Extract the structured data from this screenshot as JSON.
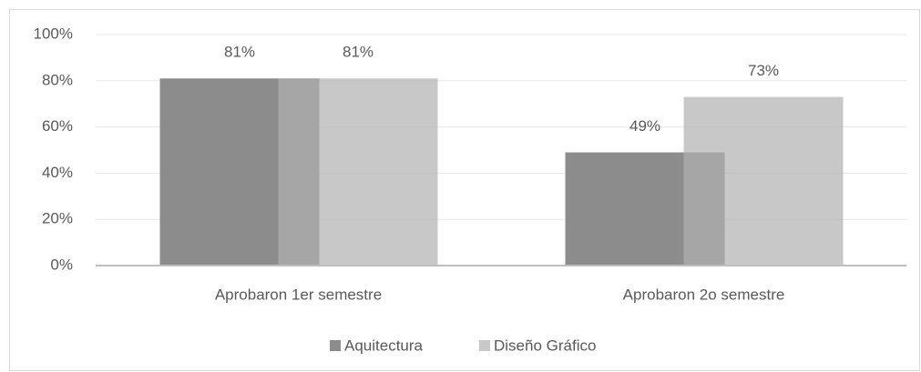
{
  "chart_data": {
    "type": "bar",
    "categories": [
      "Aprobaron 1er semestre",
      "Aprobaron 2o semestre"
    ],
    "series": [
      {
        "name": "Aquitectura",
        "color": "#8c8c8c",
        "values": [
          81,
          49
        ],
        "value_labels": [
          "81%",
          "49%"
        ]
      },
      {
        "name": "Diseño Gráfico",
        "color": "#c8c8c8",
        "values": [
          81,
          73
        ],
        "value_labels": [
          "81%",
          "73%"
        ]
      }
    ],
    "ylim": [
      0,
      100
    ],
    "yticks": [
      {
        "value": 0,
        "label": "0%"
      },
      {
        "value": 20,
        "label": "20%"
      },
      {
        "value": 40,
        "label": "40%"
      },
      {
        "value": 60,
        "label": "60%"
      },
      {
        "value": 80,
        "label": "80%"
      },
      {
        "value": 100,
        "label": "100%"
      }
    ],
    "grid": true,
    "legend": "bottom"
  }
}
